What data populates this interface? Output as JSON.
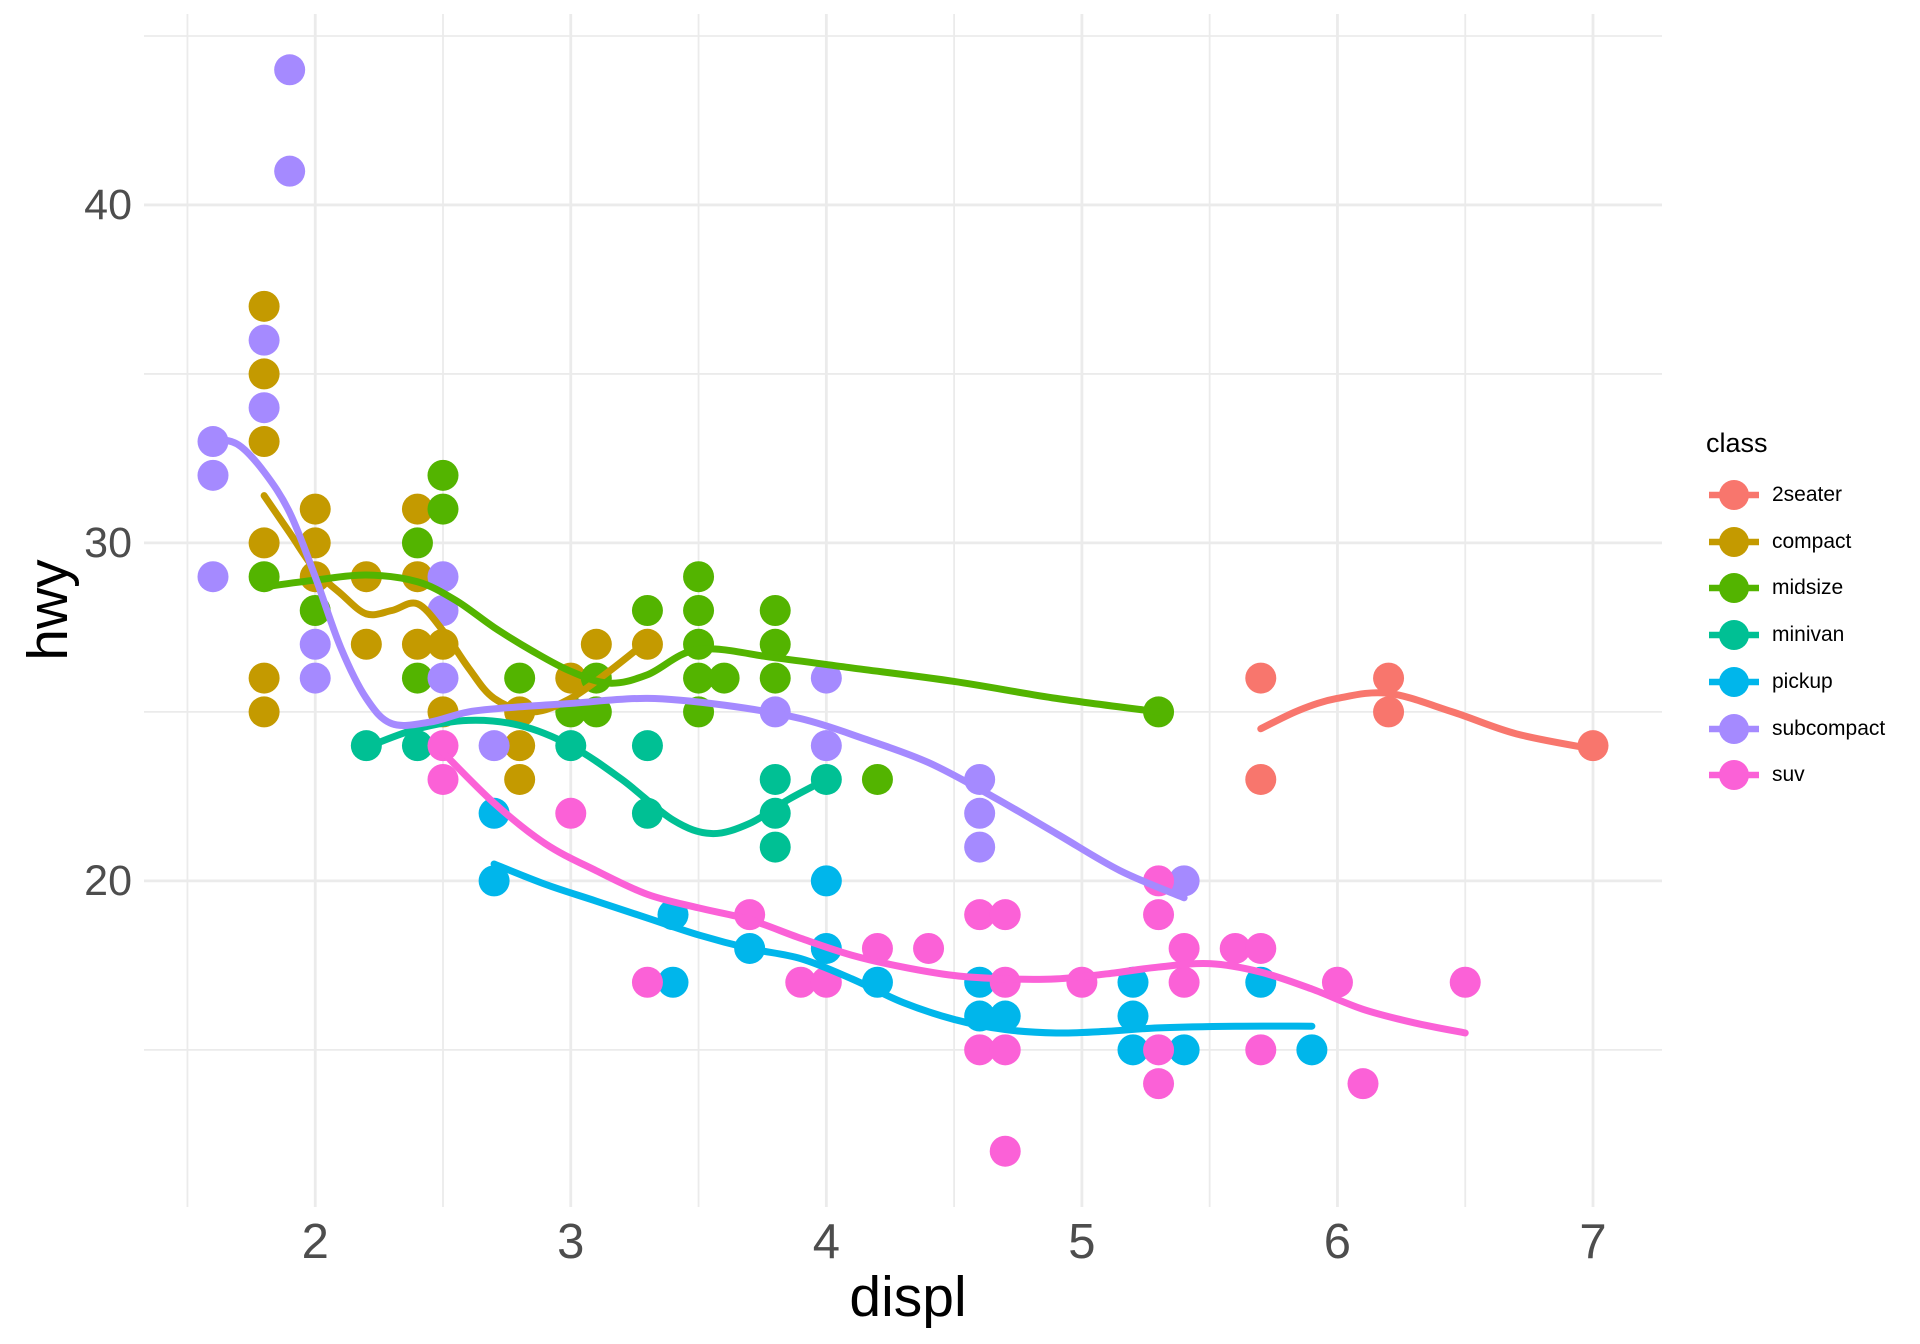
{
  "legend": {
    "title": "class",
    "entries": [
      "2seater",
      "compact",
      "midsize",
      "minivan",
      "pickup",
      "subcompact",
      "suv"
    ]
  },
  "chart_data": {
    "type": "scatter",
    "title": "",
    "xlabel": "displ",
    "ylabel": "hwy",
    "xlim": [
      1.33,
      7.27
    ],
    "ylim": [
      10.35,
      45.65
    ],
    "x_major_ticks": [
      2,
      3,
      4,
      5,
      6,
      7
    ],
    "x_minor_ticks": [
      1.5,
      2.5,
      3.5,
      4.5,
      5.5,
      6.5
    ],
    "y_major_ticks": [
      20,
      30,
      40
    ],
    "y_minor_ticks": [
      15,
      25,
      35,
      45
    ],
    "grid": true,
    "grid_color": "#EBEBEB",
    "background": "#FFFFFF",
    "tick_label_color": "#4D4D4D",
    "legend_position": "right",
    "series": [
      {
        "name": "2seater",
        "color": "#F8766D",
        "points": [
          [
            5.7,
            26
          ],
          [
            5.7,
            23
          ],
          [
            6.2,
            26
          ],
          [
            6.2,
            25
          ],
          [
            7.0,
            24
          ]
        ],
        "smooth": [
          [
            5.7,
            24.5
          ],
          [
            5.85,
            25.05
          ],
          [
            6.0,
            25.4
          ],
          [
            6.2,
            25.55
          ],
          [
            6.45,
            25.0
          ],
          [
            6.7,
            24.35
          ],
          [
            7.0,
            23.9
          ]
        ]
      },
      {
        "name": "compact",
        "color": "#C49A00",
        "points": [
          [
            1.8,
            37
          ],
          [
            1.8,
            35
          ],
          [
            1.8,
            33
          ],
          [
            1.8,
            30
          ],
          [
            1.8,
            26
          ],
          [
            1.8,
            25
          ],
          [
            2.0,
            31
          ],
          [
            2.0,
            30
          ],
          [
            2.0,
            29
          ],
          [
            2.2,
            29
          ],
          [
            2.2,
            27
          ],
          [
            2.4,
            31
          ],
          [
            2.4,
            29
          ],
          [
            2.4,
            27
          ],
          [
            2.5,
            27
          ],
          [
            2.5,
            25
          ],
          [
            2.8,
            25
          ],
          [
            2.8,
            24
          ],
          [
            2.8,
            23
          ],
          [
            3.0,
            26
          ],
          [
            3.1,
            27
          ],
          [
            3.3,
            27
          ]
        ],
        "smooth": [
          [
            1.8,
            31.4
          ],
          [
            1.9,
            30.3
          ],
          [
            2.0,
            29.2
          ],
          [
            2.1,
            28.5
          ],
          [
            2.2,
            27.9
          ],
          [
            2.3,
            28.0
          ],
          [
            2.4,
            28.2
          ],
          [
            2.5,
            27.4
          ],
          [
            2.6,
            26.3
          ],
          [
            2.7,
            25.4
          ],
          [
            2.85,
            25.0
          ],
          [
            3.0,
            25.4
          ],
          [
            3.15,
            26.2
          ],
          [
            3.3,
            27.1
          ]
        ]
      },
      {
        "name": "midsize",
        "color": "#53B400",
        "points": [
          [
            1.8,
            29
          ],
          [
            2.0,
            28
          ],
          [
            2.4,
            30
          ],
          [
            2.4,
            26
          ],
          [
            2.5,
            32
          ],
          [
            2.5,
            31
          ],
          [
            2.8,
            26
          ],
          [
            3.0,
            25
          ],
          [
            3.1,
            26
          ],
          [
            3.1,
            25
          ],
          [
            3.3,
            28
          ],
          [
            3.5,
            29
          ],
          [
            3.5,
            28
          ],
          [
            3.5,
            27
          ],
          [
            3.5,
            26
          ],
          [
            3.5,
            25
          ],
          [
            3.6,
            26
          ],
          [
            3.8,
            28
          ],
          [
            3.8,
            27
          ],
          [
            3.8,
            26
          ],
          [
            4.2,
            23
          ],
          [
            5.3,
            25
          ]
        ],
        "smooth": [
          [
            1.8,
            28.7
          ],
          [
            2.0,
            28.9
          ],
          [
            2.2,
            29.05
          ],
          [
            2.4,
            28.85
          ],
          [
            2.55,
            28.3
          ],
          [
            2.7,
            27.5
          ],
          [
            2.85,
            26.8
          ],
          [
            3.0,
            26.2
          ],
          [
            3.15,
            25.85
          ],
          [
            3.3,
            26.1
          ],
          [
            3.5,
            26.85
          ],
          [
            3.8,
            26.6
          ],
          [
            4.1,
            26.3
          ],
          [
            4.5,
            25.9
          ],
          [
            4.9,
            25.4
          ],
          [
            5.3,
            25.0
          ]
        ]
      },
      {
        "name": "minivan",
        "color": "#00C094",
        "points": [
          [
            2.2,
            24
          ],
          [
            2.4,
            24
          ],
          [
            3.0,
            24
          ],
          [
            3.3,
            24
          ],
          [
            3.3,
            22
          ],
          [
            3.8,
            23
          ],
          [
            3.8,
            22
          ],
          [
            3.8,
            21
          ],
          [
            4.0,
            23
          ]
        ],
        "smooth": [
          [
            2.2,
            23.95
          ],
          [
            2.4,
            24.5
          ],
          [
            2.6,
            24.75
          ],
          [
            2.8,
            24.6
          ],
          [
            3.0,
            24.0
          ],
          [
            3.2,
            23.0
          ],
          [
            3.4,
            21.8
          ],
          [
            3.55,
            21.4
          ],
          [
            3.7,
            21.7
          ],
          [
            3.85,
            22.4
          ],
          [
            4.0,
            23.0
          ]
        ]
      },
      {
        "name": "pickup",
        "color": "#00B6EB",
        "points": [
          [
            2.7,
            22
          ],
          [
            2.7,
            20
          ],
          [
            3.4,
            19
          ],
          [
            3.4,
            17
          ],
          [
            3.7,
            18
          ],
          [
            4.0,
            20
          ],
          [
            4.0,
            18
          ],
          [
            4.2,
            17
          ],
          [
            4.6,
            17
          ],
          [
            4.6,
            16
          ],
          [
            4.7,
            16
          ],
          [
            5.2,
            17
          ],
          [
            5.2,
            16
          ],
          [
            5.2,
            15
          ],
          [
            5.4,
            15
          ],
          [
            5.7,
            17
          ],
          [
            5.9,
            15
          ]
        ],
        "smooth": [
          [
            2.7,
            20.5
          ],
          [
            2.9,
            19.9
          ],
          [
            3.1,
            19.4
          ],
          [
            3.3,
            18.9
          ],
          [
            3.5,
            18.4
          ],
          [
            3.7,
            18.0
          ],
          [
            3.9,
            17.7
          ],
          [
            4.1,
            17.1
          ],
          [
            4.3,
            16.4
          ],
          [
            4.5,
            15.9
          ],
          [
            4.7,
            15.6
          ],
          [
            4.9,
            15.5
          ],
          [
            5.1,
            15.55
          ],
          [
            5.3,
            15.65
          ],
          [
            5.6,
            15.7
          ],
          [
            5.9,
            15.7
          ]
        ]
      },
      {
        "name": "subcompact",
        "color": "#A58AFF",
        "points": [
          [
            1.6,
            33
          ],
          [
            1.6,
            32
          ],
          [
            1.6,
            29
          ],
          [
            1.8,
            36
          ],
          [
            1.8,
            34
          ],
          [
            1.9,
            44
          ],
          [
            1.9,
            41
          ],
          [
            2.0,
            27
          ],
          [
            2.0,
            26
          ],
          [
            2.5,
            29
          ],
          [
            2.5,
            28
          ],
          [
            2.5,
            26
          ],
          [
            2.7,
            24
          ],
          [
            3.8,
            25
          ],
          [
            4.0,
            26
          ],
          [
            4.0,
            24
          ],
          [
            4.6,
            23
          ],
          [
            4.6,
            22
          ],
          [
            4.6,
            21
          ],
          [
            5.4,
            20
          ]
        ],
        "smooth": [
          [
            1.6,
            33.1
          ],
          [
            1.7,
            32.9
          ],
          [
            1.8,
            32.1
          ],
          [
            1.9,
            30.9
          ],
          [
            2.0,
            29.0
          ],
          [
            2.1,
            26.9
          ],
          [
            2.2,
            25.4
          ],
          [
            2.3,
            24.65
          ],
          [
            2.45,
            24.7
          ],
          [
            2.6,
            25.0
          ],
          [
            2.8,
            25.15
          ],
          [
            3.0,
            25.25
          ],
          [
            3.3,
            25.4
          ],
          [
            3.6,
            25.2
          ],
          [
            3.9,
            24.8
          ],
          [
            4.15,
            24.2
          ],
          [
            4.4,
            23.5
          ],
          [
            4.65,
            22.5
          ],
          [
            4.9,
            21.4
          ],
          [
            5.15,
            20.3
          ],
          [
            5.4,
            19.5
          ]
        ]
      },
      {
        "name": "suv",
        "color": "#FB61D7",
        "points": [
          [
            2.5,
            24
          ],
          [
            2.5,
            23
          ],
          [
            3.0,
            22
          ],
          [
            3.3,
            17
          ],
          [
            3.7,
            19
          ],
          [
            3.9,
            17
          ],
          [
            4.0,
            17
          ],
          [
            4.2,
            18
          ],
          [
            4.4,
            18
          ],
          [
            4.6,
            19
          ],
          [
            4.7,
            19
          ],
          [
            4.6,
            15
          ],
          [
            4.7,
            17
          ],
          [
            4.7,
            15
          ],
          [
            4.7,
            12
          ],
          [
            5.0,
            17
          ],
          [
            5.3,
            20
          ],
          [
            5.3,
            19
          ],
          [
            5.3,
            15
          ],
          [
            5.3,
            14
          ],
          [
            5.4,
            18
          ],
          [
            5.4,
            17
          ],
          [
            5.6,
            18
          ],
          [
            5.7,
            18
          ],
          [
            5.7,
            15
          ],
          [
            6.0,
            17
          ],
          [
            6.1,
            14
          ],
          [
            6.5,
            17
          ]
        ],
        "smooth": [
          [
            2.5,
            23.8
          ],
          [
            2.7,
            22.3
          ],
          [
            2.9,
            21.1
          ],
          [
            3.1,
            20.3
          ],
          [
            3.3,
            19.6
          ],
          [
            3.5,
            19.2
          ],
          [
            3.7,
            18.85
          ],
          [
            3.9,
            18.3
          ],
          [
            4.1,
            17.8
          ],
          [
            4.3,
            17.45
          ],
          [
            4.5,
            17.2
          ],
          [
            4.7,
            17.1
          ],
          [
            4.9,
            17.1
          ],
          [
            5.1,
            17.25
          ],
          [
            5.3,
            17.45
          ],
          [
            5.5,
            17.55
          ],
          [
            5.7,
            17.3
          ],
          [
            5.9,
            16.8
          ],
          [
            6.1,
            16.2
          ],
          [
            6.3,
            15.8
          ],
          [
            6.5,
            15.5
          ]
        ]
      }
    ]
  }
}
